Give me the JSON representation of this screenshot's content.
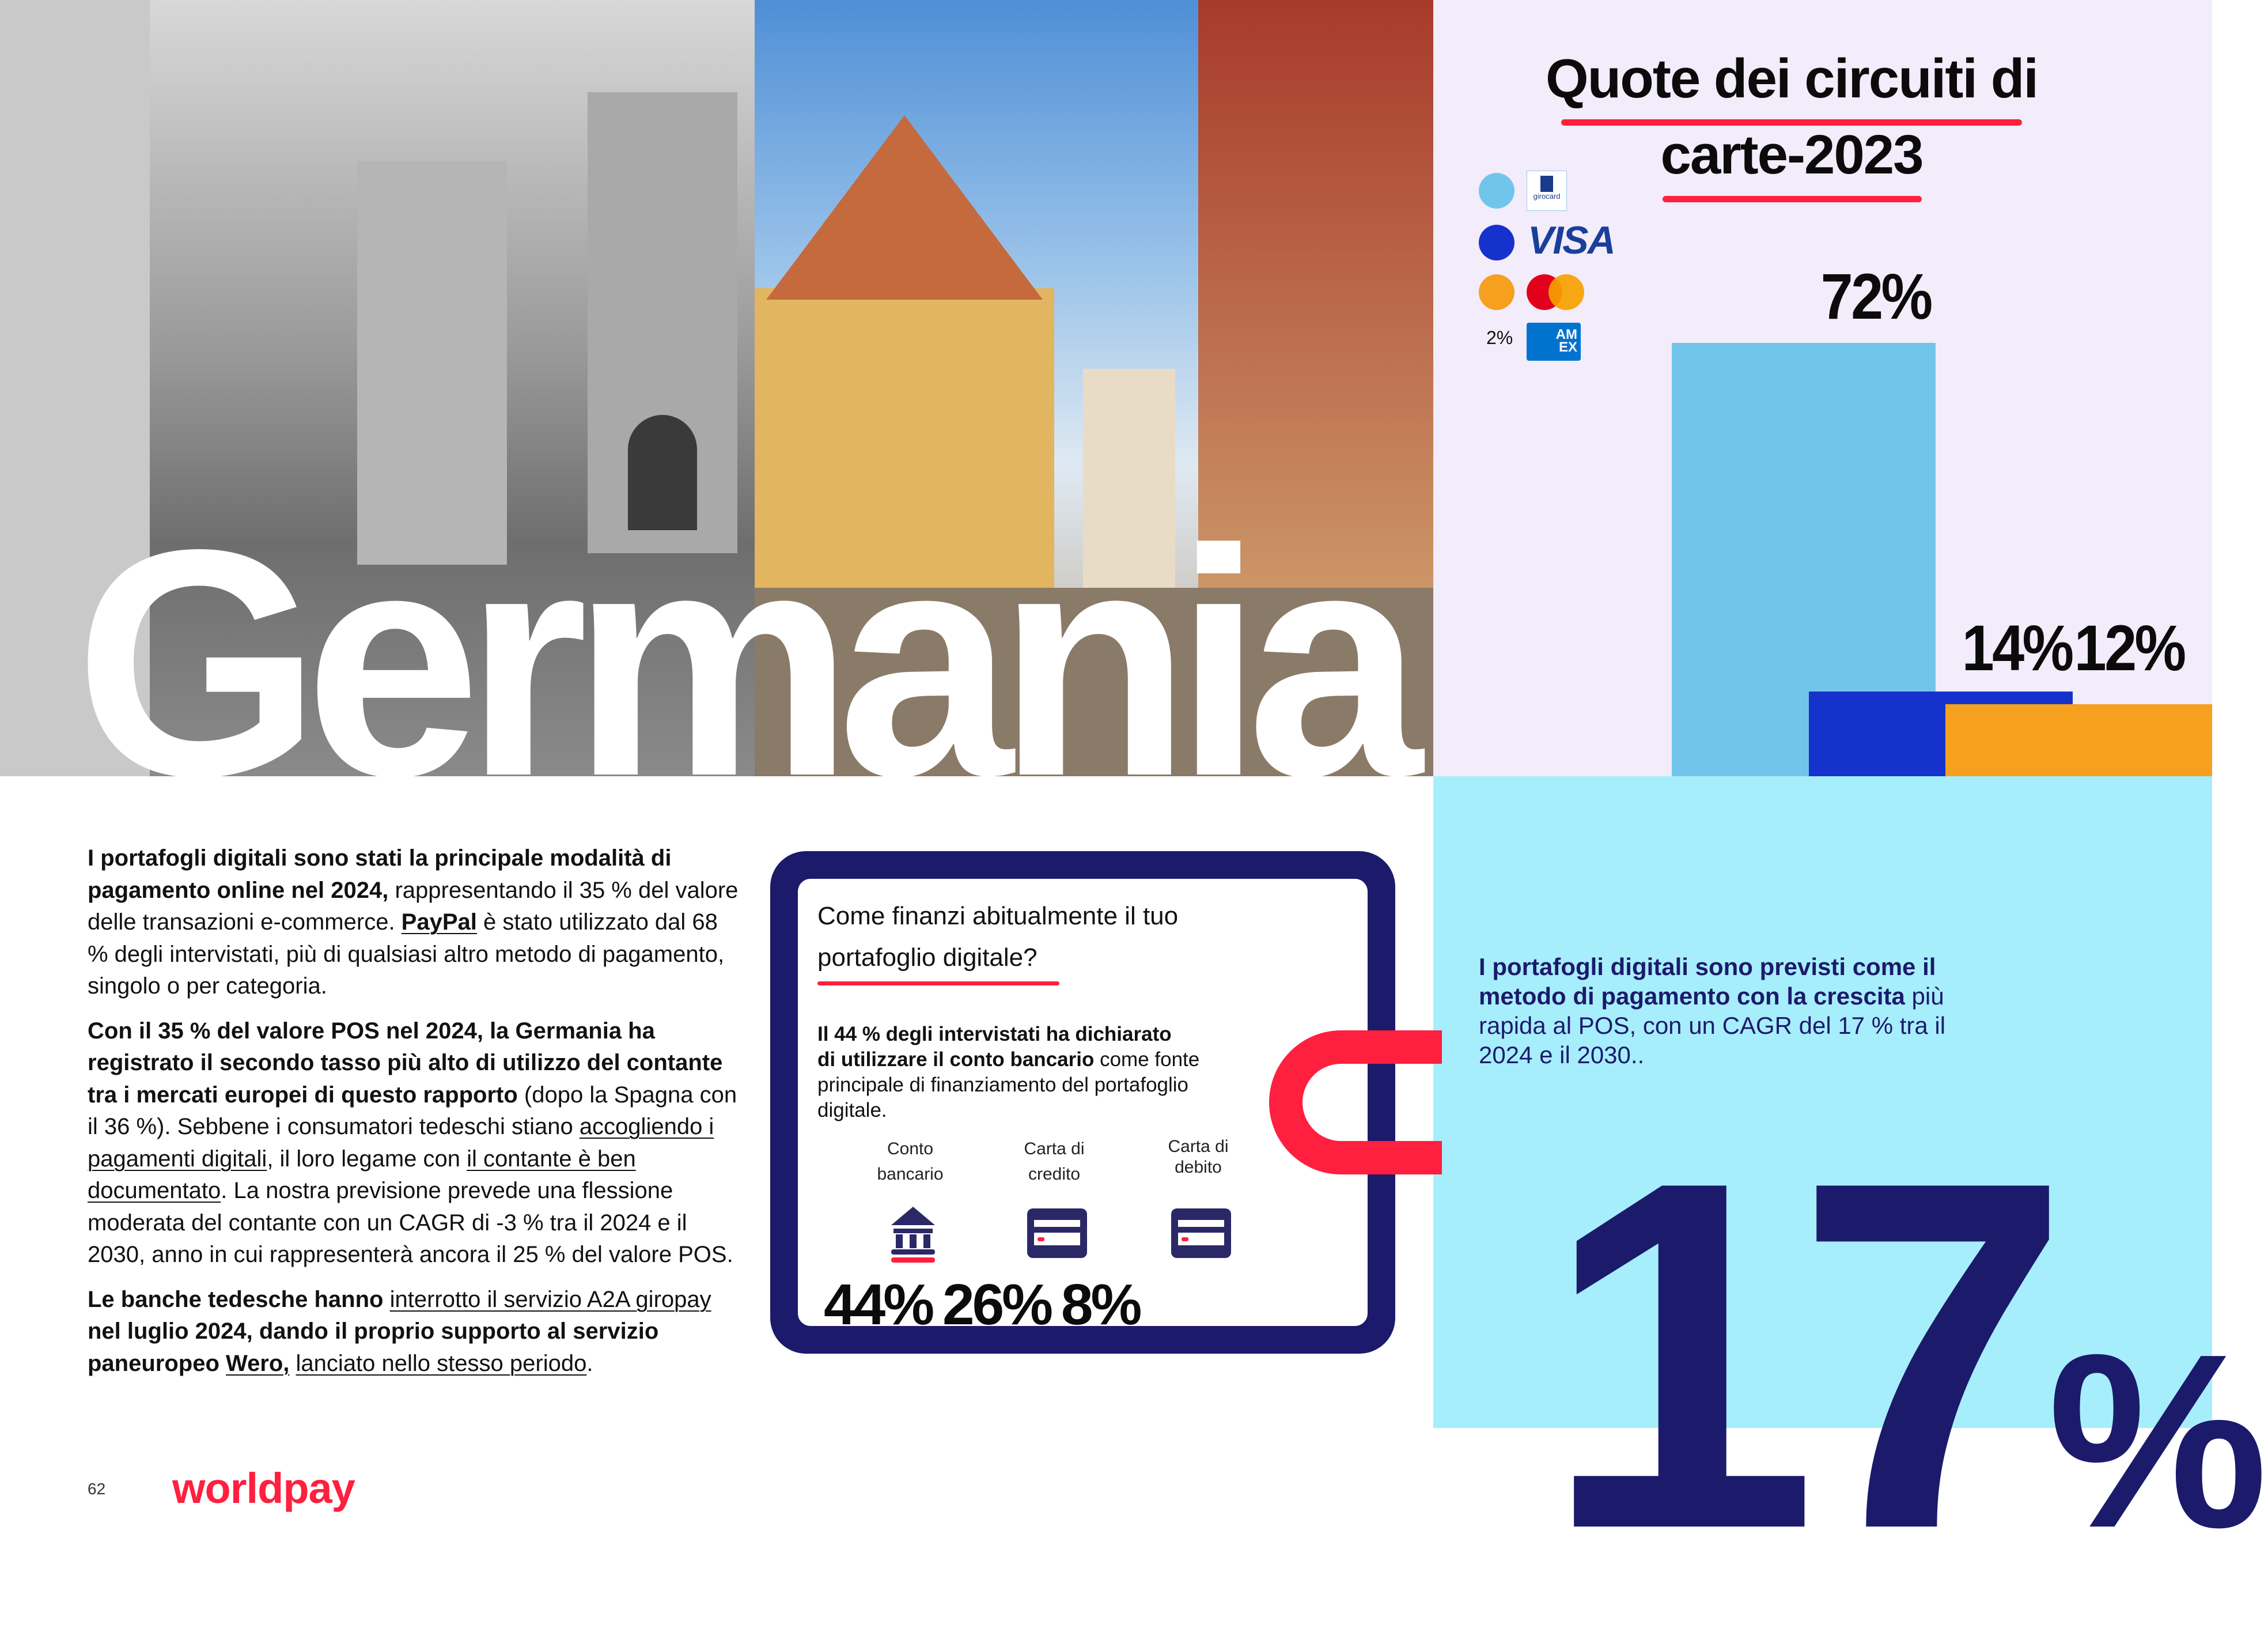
{
  "hero": {
    "title": "Germania"
  },
  "chart_data": {
    "type": "bar",
    "title": "Quote dei circuiti di carte-2023",
    "title_lines": [
      "Quote dei circuiti di",
      "carte-2023"
    ],
    "categories": [
      "girocard",
      "VISA",
      "Mastercard",
      "AMEX"
    ],
    "values": [
      72,
      14,
      12,
      2
    ],
    "labels": [
      "72%",
      "14%",
      "12%",
      "2%"
    ],
    "colors": [
      "#72c5ea",
      "#1632cc",
      "#f5a01e",
      "#006fcf"
    ],
    "ylim": [
      0,
      72
    ],
    "legend": "top-left"
  },
  "legend": {
    "girocard_text": "girocard",
    "visa_text": "VISA",
    "amex_text_1": "AM",
    "amex_text_2": "EX",
    "amex_pct": "2%"
  },
  "left_column": {
    "p1_bold": "I portafogli digitali sono stati la principale modalità di pagamento online nel 2024,",
    "p1_a": " rappresentando il 35 % del valore delle transazioni e-commerce. ",
    "p1_link": "PayPal",
    "p1_b": " è stato utilizzato dal 68 % degli intervistati, più di qualsiasi altro metodo di pagamento, singolo o per categoria.",
    "p2_bold": "Con il 35 % del valore POS nel 2024, la Germania ha registrato il secondo tasso più alto di utilizzo del contante tra i mercati europei di questo rapporto",
    "p2_a": " (dopo la Spagna con il 36 %). Sebbene i consumatori tedeschi stiano ",
    "p2_link1": "accogliendo i pagamenti digitali",
    "p2_b": ", il loro legame con ",
    "p2_link2": "il contante è ben documentato",
    "p2_c": ". La nostra previsione prevede una flessione moderata del contante con un CAGR di -3 % tra il 2024 e il 2030, anno in cui rappresenterà ancora il 25 % del valore POS.",
    "p3_bold1": "Le banche tedesche hanno ",
    "p3_link1": "interrotto il servizio A2A giropay",
    "p3_bold2": " nel luglio 2024, dando il proprio supporto al servizio paneuropeo ",
    "p3_link2": "Wero,",
    "p3_sp": " ",
    "p3_link3": "lanciato nello stesso periodo",
    "p3_end": "."
  },
  "card": {
    "question_line1": "Come finanzi abitualmente il tuo",
    "question_line2": "portafoglio digitale?",
    "stat_bold_1": "Il 44 % degli intervistati ha dichiarato",
    "stat_bold_2": "di utilizzare il conto bancario",
    "stat_rest": " come fonte principale di finanziamento del portafoglio digitale.",
    "items": [
      {
        "label_1": "Conto",
        "label_2": "bancario",
        "value": "44%"
      },
      {
        "label_1": "Carta di",
        "label_2": "credito",
        "value": "26%"
      },
      {
        "label_1": "Carta di",
        "label_2": "debito",
        "value": "8%"
      }
    ]
  },
  "forecast": {
    "bold": "I portafogli digitali sono previsti come il metodo di pagamento con la crescita",
    "rest": " più rapida al POS, con un CAGR del 17 % tra il 2024 e il 2030..",
    "big_number": "17",
    "big_pct": "%"
  },
  "footer": {
    "page_number": "62",
    "logo": "worldpay"
  }
}
